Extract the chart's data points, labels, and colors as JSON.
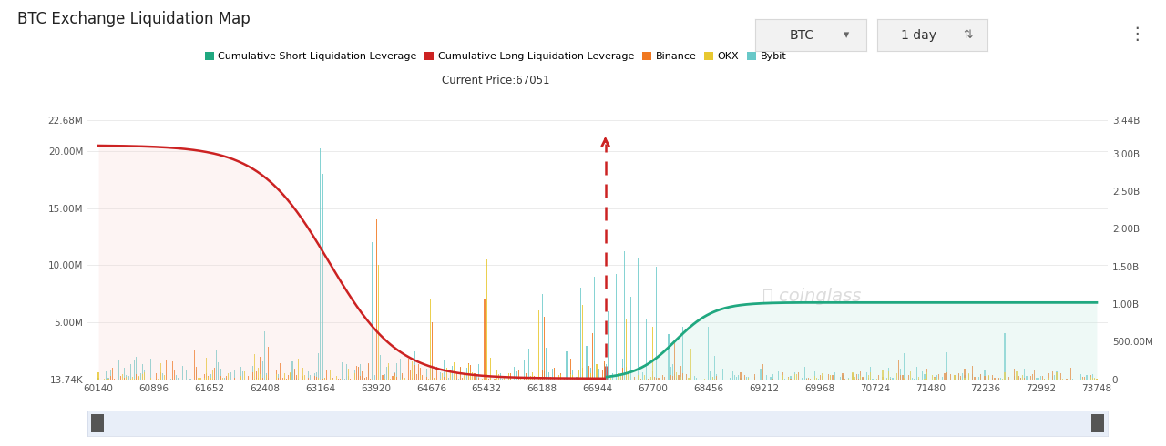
{
  "title": "BTC Exchange Liquidation Map",
  "current_price": 67051,
  "current_price_label": "Current Price:67051",
  "x_min": 60140,
  "x_max": 73748,
  "x_ticks": [
    60140,
    60896,
    61652,
    62408,
    63164,
    63920,
    64676,
    65432,
    66188,
    66944,
    67700,
    68456,
    69212,
    69968,
    70724,
    71480,
    72236,
    72992,
    73748
  ],
  "y_left_ticks": [
    "13.74K",
    "5.00M",
    "10.00M",
    "15.00M",
    "20.00M",
    "22.68M"
  ],
  "y_left_values": [
    0,
    5000000,
    10000000,
    15000000,
    20000000,
    22680000
  ],
  "y_right_ticks": [
    "0",
    "500.00M",
    "1.00B",
    "1.50B",
    "2.00B",
    "2.50B",
    "3.00B",
    "3.44B"
  ],
  "y_right_values": [
    0,
    500000000,
    1000000000,
    1500000000,
    2000000000,
    2500000000,
    3000000000,
    3440000000
  ],
  "background_color": "#ffffff",
  "bar_colors": {
    "binance": "#f07820",
    "okx": "#e8c830",
    "bybit": "#68c8c8"
  },
  "long_line_color": "#cc2222",
  "long_fill_color": "#f8d0cc",
  "short_line_color": "#20a880",
  "short_fill_color": "#c8ede4",
  "arrow_color": "#cc2222",
  "grid_color": "#e8e8e8",
  "scroll_color": "#e8eef8",
  "watermark_color": "#c8c8c8",
  "btn_bg": "#f2f2f2",
  "btn_border": "#d8d8d8"
}
